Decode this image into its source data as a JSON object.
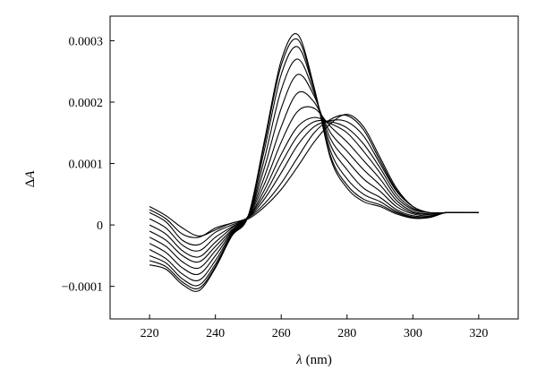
{
  "chart_data": {
    "type": "line",
    "title": "",
    "xlabel": "λ (nm)",
    "xlabel_var": "λ",
    "xlabel_unit": "(nm)",
    "ylabel": "ΔA",
    "ylabel_delta": "Δ",
    "ylabel_var": "A",
    "xlim": [
      208,
      332
    ],
    "ylim": [
      -0.000153,
      0.00034
    ],
    "x_ticks": [
      220,
      240,
      260,
      280,
      300,
      320
    ],
    "y_ticks": [
      -0.0001,
      0,
      0.0001,
      0.0002,
      0.0003
    ],
    "x_tick_labels": [
      "220",
      "240",
      "260",
      "280",
      "300",
      "320"
    ],
    "y_tick_labels": [
      "−0.0001",
      "0",
      "0.0001",
      "0.0002",
      "0.0003"
    ],
    "grid": false,
    "legend": "none",
    "line_color": "#000000",
    "x": [
      220,
      225,
      230,
      235,
      240,
      245,
      250,
      255,
      260,
      265,
      270,
      275,
      280,
      285,
      290,
      295,
      300,
      305,
      310,
      315,
      320
    ],
    "series": [
      {
        "values": [
          3e-05,
          1.5e-05,
          -5e-06,
          -1.8e-05,
          -8e-06,
          3e-06,
          1e-05,
          3e-05,
          5.8e-05,
          9.5e-05,
          0.000135,
          0.000165,
          0.00018,
          0.00016,
          0.00011,
          6e-05,
          3e-05,
          2e-05,
          2e-05,
          2e-05,
          2e-05
        ]
      },
      {
        "values": [
          2.5e-05,
          1e-05,
          -1.5e-05,
          -2e-05,
          -5e-06,
          3e-06,
          1.2e-05,
          3.5e-05,
          6.8e-05,
          0.00011,
          0.00015,
          0.000172,
          0.000178,
          0.000155,
          0.000105,
          5.7e-05,
          3e-05,
          2e-05,
          2e-05,
          2e-05,
          2e-05
        ]
      },
      {
        "values": [
          2e-05,
          5e-06,
          -2.5e-05,
          -3.2e-05,
          -1.2e-05,
          0.0,
          1.2e-05,
          4.3e-05,
          8.5e-05,
          0.00013,
          0.00016,
          0.00017,
          0.000168,
          0.000145,
          0.0001,
          5.5e-05,
          3e-05,
          2e-05,
          2e-05,
          2e-05,
          2e-05
        ]
      },
      {
        "values": [
          1e-05,
          -5e-06,
          -3.3e-05,
          -4.2e-05,
          -2e-05,
          -3e-06,
          1.3e-05,
          5e-05,
          0.0001,
          0.000145,
          0.000168,
          0.000168,
          0.000158,
          0.000132,
          9.3e-05,
          5e-05,
          2.7e-05,
          2e-05,
          2e-05,
          2e-05,
          2e-05
        ]
      },
      {
        "values": [
          0.0,
          -1.5e-05,
          -4.2e-05,
          -5.2e-05,
          -2.8e-05,
          -5e-06,
          1.3e-05,
          5.8e-05,
          0.000115,
          0.00016,
          0.000175,
          0.000165,
          0.00015,
          0.00012,
          8.5e-05,
          4.5e-05,
          2.5e-05,
          2e-05,
          2e-05,
          2e-05,
          2e-05
        ]
      },
      {
        "values": [
          -1e-05,
          -2.5e-05,
          -5e-05,
          -6e-05,
          -3.5e-05,
          -8e-06,
          1.4e-05,
          6.8e-05,
          0.000135,
          0.000185,
          0.00019,
          0.00016,
          0.000135,
          0.000105,
          7.5e-05,
          4e-05,
          2.2e-05,
          1.8e-05,
          2e-05,
          2e-05,
          2e-05
        ]
      },
      {
        "values": [
          -2e-05,
          -3.5e-05,
          -6e-05,
          -7e-05,
          -4.2e-05,
          -1e-05,
          1.5e-05,
          8e-05,
          0.00016,
          0.000215,
          0.0002,
          0.00015,
          0.00012,
          9e-05,
          6.5e-05,
          3.5e-05,
          2e-05,
          1.7e-05,
          2e-05,
          2e-05,
          2e-05
        ]
      },
      {
        "values": [
          -3e-05,
          -4.5e-05,
          -7e-05,
          -8e-05,
          -5e-05,
          -1.2e-05,
          1.5e-05,
          9.5e-05,
          0.00019,
          0.000245,
          0.00021,
          0.00014,
          0.000105,
          7.5e-05,
          5.5e-05,
          3e-05,
          1.8e-05,
          1.5e-05,
          2e-05,
          2e-05,
          2e-05
        ]
      },
      {
        "values": [
          -4e-05,
          -5.5e-05,
          -8e-05,
          -9e-05,
          -5.8e-05,
          -1.4e-05,
          1.5e-05,
          0.00011,
          0.00022,
          0.00027,
          0.000215,
          0.00013,
          9e-05,
          6e-05,
          4.5e-05,
          2.5e-05,
          1.5e-05,
          1.4e-05,
          2e-05,
          2e-05,
          2e-05
        ]
      },
      {
        "values": [
          -5e-05,
          -6.2e-05,
          -8.8e-05,
          -9.8e-05,
          -6.4e-05,
          -1.6e-05,
          1.5e-05,
          0.000125,
          0.000245,
          0.00029,
          0.00022,
          0.00012,
          7.5e-05,
          5e-05,
          3.8e-05,
          2.2e-05,
          1.3e-05,
          1.3e-05,
          2e-05,
          2e-05,
          2e-05
        ]
      },
      {
        "values": [
          -5.8e-05,
          -6.8e-05,
          -9.3e-05,
          -0.000103,
          -6.8e-05,
          -1.7e-05,
          1.5e-05,
          0.000135,
          0.00026,
          0.000302,
          0.000222,
          0.000112,
          6.5e-05,
          4.2e-05,
          3.3e-05,
          2e-05,
          1.2e-05,
          1.2e-05,
          2e-05,
          2e-05,
          2e-05
        ]
      },
      {
        "values": [
          -6.5e-05,
          -7.2e-05,
          -9.7e-05,
          -0.000107,
          -7e-05,
          -1.8e-05,
          1.5e-05,
          0.00014,
          0.000268,
          0.00031,
          0.000224,
          0.000108,
          6e-05,
          3.8e-05,
          3e-05,
          1.8e-05,
          1.1e-05,
          1.2e-05,
          2e-05,
          2e-05,
          2e-05
        ]
      }
    ]
  }
}
